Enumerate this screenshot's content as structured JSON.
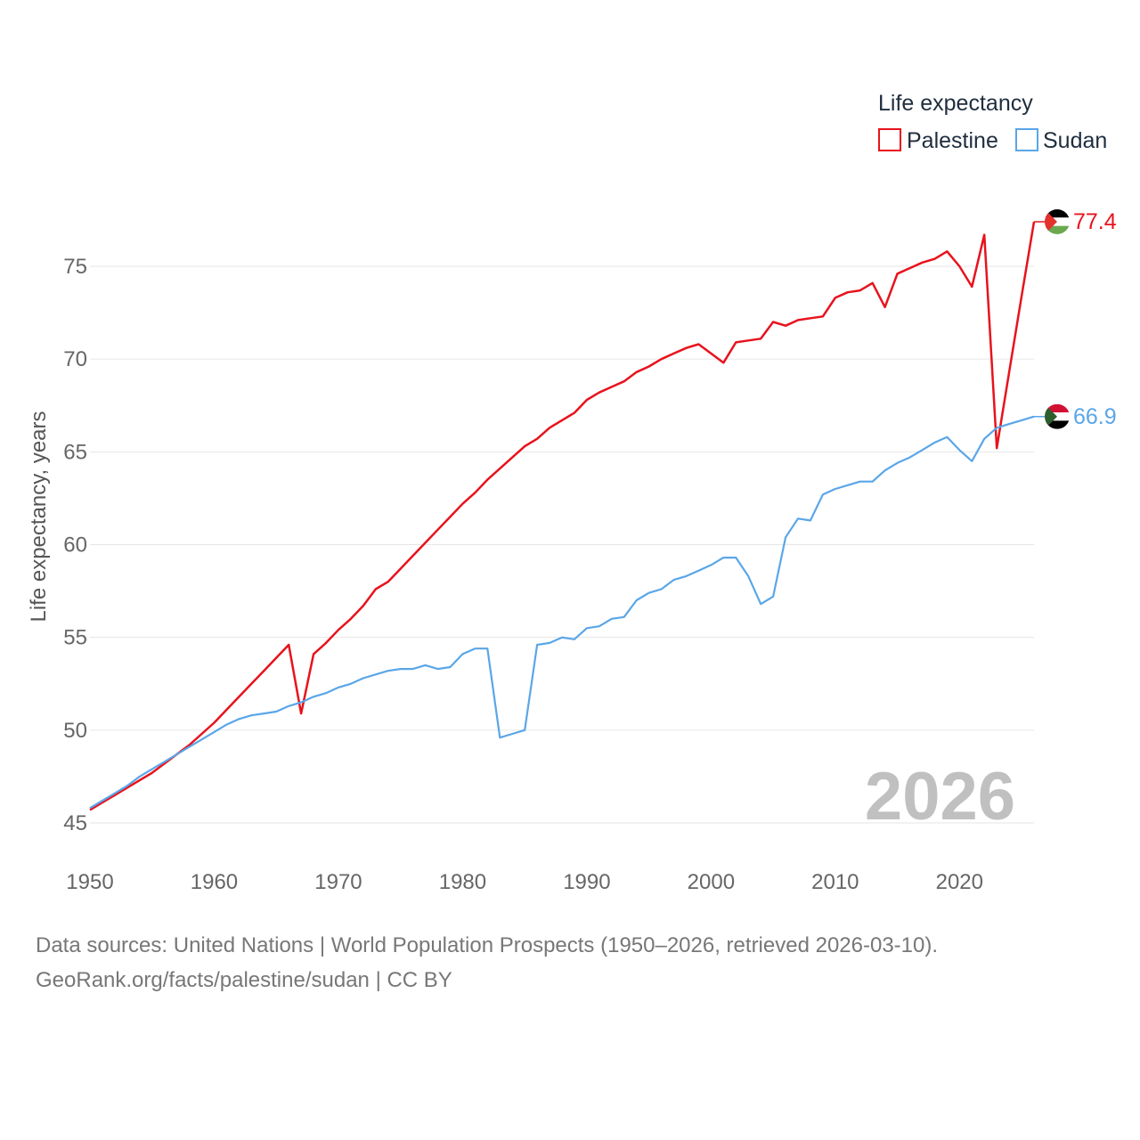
{
  "chart_data": {
    "type": "line",
    "ylabel": "Life expectancy, years",
    "xlabel": "",
    "xlim": [
      1950,
      2026
    ],
    "ylim": [
      45,
      78
    ],
    "x_ticks": [
      "1950",
      "1960",
      "1970",
      "1980",
      "1990",
      "2000",
      "2010",
      "2020"
    ],
    "y_ticks": [
      "45",
      "50",
      "55",
      "60",
      "65",
      "70",
      "75"
    ],
    "legend_title": "Life expectancy",
    "legend_position": "top-right",
    "year_label": "2026",
    "x": [
      1950,
      1951,
      1952,
      1953,
      1954,
      1955,
      1956,
      1957,
      1958,
      1959,
      1960,
      1961,
      1962,
      1963,
      1964,
      1965,
      1966,
      1967,
      1968,
      1969,
      1970,
      1971,
      1972,
      1973,
      1974,
      1975,
      1976,
      1977,
      1978,
      1979,
      1980,
      1981,
      1982,
      1983,
      1984,
      1985,
      1986,
      1987,
      1988,
      1989,
      1990,
      1991,
      1992,
      1993,
      1994,
      1995,
      1996,
      1997,
      1998,
      1999,
      2000,
      2001,
      2002,
      2003,
      2004,
      2005,
      2006,
      2007,
      2008,
      2009,
      2010,
      2011,
      2012,
      2013,
      2014,
      2015,
      2016,
      2017,
      2018,
      2019,
      2020,
      2021,
      2022,
      2023,
      2024,
      2025,
      2026
    ],
    "series": [
      {
        "name": "Palestine",
        "color": "#e8121c",
        "end_label": "77.4",
        "values": [
          45.7,
          46.1,
          46.5,
          46.9,
          47.3,
          47.7,
          48.2,
          48.7,
          49.2,
          49.8,
          50.4,
          51.1,
          51.8,
          52.5,
          53.2,
          53.9,
          54.6,
          50.9,
          54.1,
          54.7,
          55.4,
          56.0,
          56.7,
          57.6,
          58.0,
          58.7,
          59.4,
          60.1,
          60.8,
          61.5,
          62.2,
          62.8,
          63.5,
          64.1,
          64.7,
          65.3,
          65.7,
          66.3,
          66.7,
          67.1,
          67.8,
          68.2,
          68.5,
          68.8,
          69.3,
          69.6,
          70.0,
          70.3,
          70.6,
          70.8,
          70.3,
          69.8,
          70.9,
          71.0,
          71.1,
          72.0,
          71.8,
          72.1,
          72.2,
          72.3,
          73.3,
          73.6,
          73.7,
          74.1,
          72.8,
          74.6,
          74.9,
          75.2,
          75.4,
          75.8,
          75.0,
          73.9,
          76.7,
          65.2,
          69.3,
          73.4,
          77.4
        ]
      },
      {
        "name": "Sudan",
        "color": "#5aa6e8",
        "end_label": "66.9",
        "values": [
          45.8,
          46.2,
          46.6,
          47.0,
          47.5,
          47.9,
          48.3,
          48.7,
          49.1,
          49.5,
          49.9,
          50.3,
          50.6,
          50.8,
          50.9,
          51.0,
          51.3,
          51.5,
          51.8,
          52.0,
          52.3,
          52.5,
          52.8,
          53.0,
          53.2,
          53.3,
          53.3,
          53.5,
          53.3,
          53.4,
          54.1,
          54.4,
          54.4,
          49.6,
          49.8,
          50.0,
          54.6,
          54.7,
          55.0,
          54.9,
          55.5,
          55.6,
          56.0,
          56.1,
          57.0,
          57.4,
          57.6,
          58.1,
          58.3,
          58.6,
          58.9,
          59.3,
          59.3,
          58.3,
          56.8,
          57.2,
          60.4,
          61.4,
          61.3,
          62.7,
          63.0,
          63.2,
          63.4,
          63.4,
          64.0,
          64.4,
          64.7,
          65.1,
          65.5,
          65.8,
          65.1,
          64.5,
          65.7,
          66.3,
          66.5,
          66.7,
          66.9
        ]
      }
    ]
  },
  "footer": {
    "line1": "Data sources: United Nations | World Population Prospects (1950–2026, retrieved 2026-03-10).",
    "line2": "GeoRank.org/facts/palestine/sudan | CC BY"
  },
  "flags": {
    "palestine": {
      "colors": [
        "#000000",
        "#ffffff",
        "#149954",
        "#e4312b"
      ],
      "icon": "palestine-flag-icon"
    },
    "sudan": {
      "colors": [
        "#d21034",
        "#ffffff",
        "#000000",
        "#007229"
      ],
      "icon": "sudan-flag-icon"
    }
  }
}
